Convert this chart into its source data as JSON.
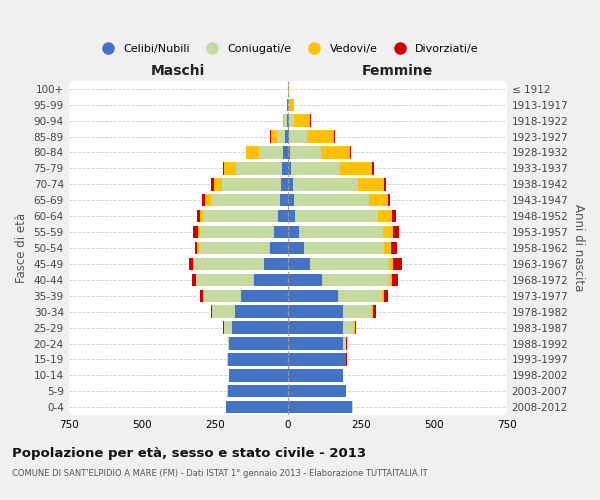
{
  "age_groups": [
    "0-4",
    "5-9",
    "10-14",
    "15-19",
    "20-24",
    "25-29",
    "30-34",
    "35-39",
    "40-44",
    "45-49",
    "50-54",
    "55-59",
    "60-64",
    "65-69",
    "70-74",
    "75-79",
    "80-84",
    "85-89",
    "90-94",
    "95-99",
    "100+"
  ],
  "birth_years": [
    "2008-2012",
    "2003-2007",
    "1998-2002",
    "1993-1997",
    "1988-1992",
    "1983-1987",
    "1978-1982",
    "1973-1977",
    "1968-1972",
    "1963-1967",
    "1958-1962",
    "1953-1957",
    "1948-1952",
    "1943-1947",
    "1938-1942",
    "1933-1937",
    "1928-1932",
    "1923-1927",
    "1918-1922",
    "1913-1917",
    "≤ 1912"
  ],
  "male": {
    "celibe": [
      210,
      205,
      200,
      205,
      200,
      190,
      180,
      160,
      115,
      82,
      62,
      48,
      32,
      26,
      22,
      20,
      15,
      8,
      3,
      1,
      0
    ],
    "coniugato": [
      2,
      2,
      2,
      2,
      5,
      28,
      78,
      128,
      198,
      238,
      242,
      252,
      258,
      238,
      202,
      158,
      82,
      30,
      8,
      2,
      0
    ],
    "vedovo": [
      0,
      0,
      0,
      0,
      0,
      0,
      1,
      1,
      2,
      3,
      5,
      8,
      10,
      20,
      30,
      40,
      45,
      20,
      5,
      1,
      0
    ],
    "divorziato": [
      0,
      0,
      0,
      0,
      1,
      2,
      5,
      12,
      12,
      15,
      10,
      15,
      12,
      8,
      8,
      5,
      2,
      1,
      0,
      0,
      0
    ]
  },
  "female": {
    "nubile": [
      220,
      198,
      188,
      198,
      188,
      188,
      188,
      172,
      118,
      78,
      57,
      38,
      26,
      20,
      18,
      12,
      8,
      5,
      3,
      1,
      0
    ],
    "coniugata": [
      2,
      2,
      2,
      2,
      10,
      38,
      98,
      152,
      228,
      268,
      272,
      288,
      282,
      258,
      222,
      168,
      105,
      60,
      20,
      5,
      1
    ],
    "vedova": [
      0,
      0,
      0,
      1,
      2,
      3,
      5,
      5,
      10,
      15,
      25,
      35,
      50,
      65,
      90,
      110,
      100,
      95,
      55,
      15,
      2
    ],
    "divorziata": [
      0,
      0,
      0,
      1,
      2,
      5,
      10,
      15,
      20,
      30,
      20,
      20,
      12,
      8,
      5,
      5,
      3,
      2,
      1,
      0,
      0
    ]
  },
  "colors": {
    "celibe": "#4472C4",
    "coniugato": "#c5d9a0",
    "vedovo": "#ffc000",
    "divorziato": "#cc0000"
  },
  "xlim": 750,
  "title": "Popolazione per età, sesso e stato civile - 2013",
  "subtitle": "COMUNE DI SANT'ELPIDIO A MARE (FM) - Dati ISTAT 1° gennaio 2013 - Elaborazione TUTTAITALIA.IT",
  "ylabel": "Fasce di età",
  "ylabel_right": "Anni di nascita",
  "label_maschi": "Maschi",
  "label_femmine": "Femmine",
  "legend_labels": [
    "Celibi/Nubili",
    "Coniugati/e",
    "Vedovi/e",
    "Divorziati/e"
  ],
  "legend_colors": [
    "#4472C4",
    "#c5d9a0",
    "#ffc000",
    "#cc0000"
  ],
  "bg_color": "#f0f0f0",
  "plot_bg_color": "#ffffff",
  "grid_color": "#cccccc",
  "zero_line_color": "#999999"
}
